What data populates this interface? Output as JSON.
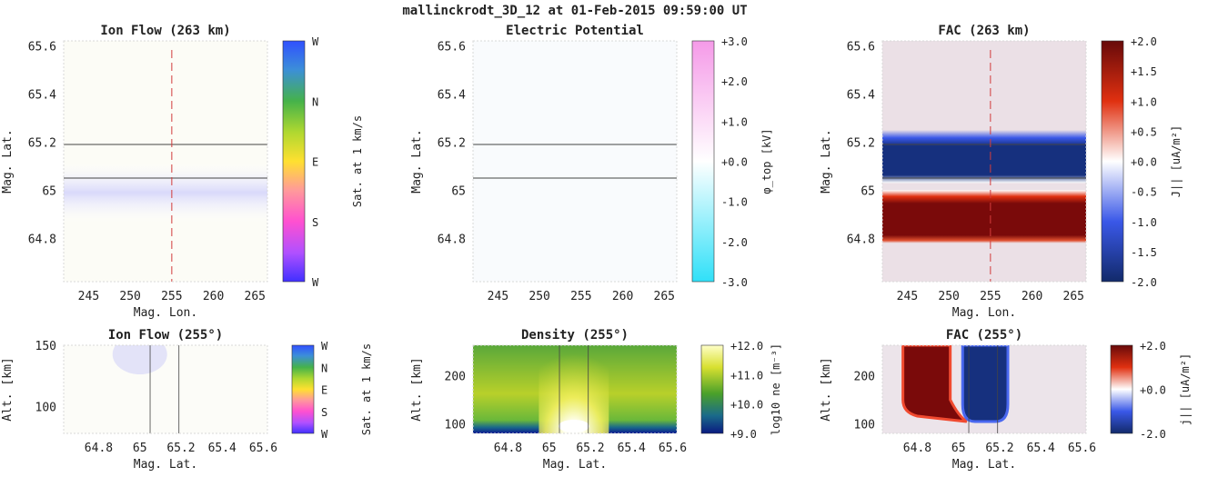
{
  "figure": {
    "suptitle": "mallinckrodt_3D_12 at 01-Feb-2015 09:59:00 UT"
  },
  "colors": {
    "frame": "#d8d8d8",
    "hline": "#444444",
    "dashed": "#d23c3c",
    "ion_tint": "#e3e3fb",
    "fac_pos": "#7a0a0a",
    "fac_neg": "#16307e",
    "fac_bg": "#ebe0e6",
    "density_low": "#0a2080",
    "density_mid": "#3a9a2a",
    "density_high": "#ffff9a"
  },
  "chart_data": [
    {
      "id": "ion-flow-top",
      "type": "heatmap",
      "title": "Ion Flow (263 km)",
      "xlabel": "Mag. Lon.",
      "ylabel": "Mag. Lat.",
      "xlim": [
        242,
        266.5
      ],
      "ylim": [
        64.62,
        65.62
      ],
      "xticks": [
        245,
        250,
        255,
        260,
        265
      ],
      "yticks": [
        64.8,
        65,
        65.2,
        65.4,
        65.6
      ],
      "hlines": [
        65.19,
        65.05
      ],
      "vline": 255,
      "colorbar": {
        "ticks": [
          "W",
          "N",
          "E",
          "S",
          "W"
        ],
        "label": "Sat. at 1 km/s"
      }
    },
    {
      "id": "electric-potential",
      "type": "heatmap",
      "title": "Electric Potential",
      "ylabel": "Mag. Lat.",
      "xlim": [
        242,
        266.5
      ],
      "ylim": [
        64.62,
        65.62
      ],
      "xticks": [
        245,
        250,
        255,
        260,
        265
      ],
      "yticks": [
        64.8,
        65,
        65.2,
        65.4,
        65.6
      ],
      "hlines": [
        65.19,
        65.05
      ],
      "colorbar": {
        "ticks": [
          "+3.0",
          "+2.0",
          "+1.0",
          "+0.0",
          "-1.0",
          "-2.0",
          "-3.0"
        ],
        "label": "φ_top [kV]"
      }
    },
    {
      "id": "fac-top",
      "type": "heatmap",
      "title": "FAC (263 km)",
      "xlabel": "Mag. Lon.",
      "ylabel": "Mag. Lat.",
      "xlim": [
        242,
        266.5
      ],
      "ylim": [
        64.62,
        65.62
      ],
      "xticks": [
        245,
        250,
        255,
        260,
        265
      ],
      "yticks": [
        64.8,
        65,
        65.2,
        65.4,
        65.6
      ],
      "hlines": [
        65.19,
        65.05
      ],
      "vline": 255,
      "bands": [
        {
          "from": 65.03,
          "to": 65.25,
          "sign": "negative"
        },
        {
          "from": 64.78,
          "to": 65.0,
          "sign": "positive"
        }
      ],
      "colorbar": {
        "ticks": [
          "+2.0",
          "+1.5",
          "+1.0",
          "+0.5",
          "+0.0",
          "-0.5",
          "-1.0",
          "-1.5",
          "-2.0"
        ],
        "label": "J|| [uA/m²]"
      }
    },
    {
      "id": "ion-flow-side",
      "type": "heatmap",
      "title": "Ion Flow (255°)",
      "xlabel": "Mag. Lat.",
      "ylabel": "Alt. [km]",
      "xlim": [
        64.63,
        65.62
      ],
      "ylim": [
        78,
        150
      ],
      "xticks": [
        64.8,
        65,
        65.2,
        65.4,
        65.6
      ],
      "yticks": [
        100,
        150
      ],
      "vlines": [
        65.05,
        65.19
      ],
      "colorbar": {
        "ticks": [
          "W",
          "N",
          "E",
          "S",
          "W"
        ],
        "label": "Sat. at 1 km/s"
      }
    },
    {
      "id": "density-side",
      "type": "heatmap",
      "title": "Density (255°)",
      "xlabel": "Mag. Lat.",
      "ylabel": "Alt. [km]",
      "xlim": [
        64.63,
        65.62
      ],
      "ylim": [
        80,
        263
      ],
      "xticks": [
        64.8,
        65,
        65.2,
        65.4,
        65.6
      ],
      "yticks": [
        100,
        200
      ],
      "vlines": [
        65.05,
        65.19
      ],
      "colorbar": {
        "ticks": [
          "+12.0",
          "+11.0",
          "+10.0",
          "+9.0"
        ],
        "label": "log10 ne [m⁻³]"
      }
    },
    {
      "id": "fac-side",
      "type": "heatmap",
      "title": "FAC (255°)",
      "xlabel": "Mag. Lat.",
      "ylabel": "Alt. [km]",
      "xlim": [
        64.63,
        65.62
      ],
      "ylim": [
        80,
        263
      ],
      "xticks": [
        64.8,
        65,
        65.2,
        65.4,
        65.6
      ],
      "yticks": [
        100,
        200
      ],
      "vlines": [
        65.05,
        65.19
      ],
      "colorbar": {
        "ticks": [
          "+2.0",
          "+0.0",
          "-2.0"
        ],
        "label": "j|| [uA/m²]"
      }
    }
  ]
}
